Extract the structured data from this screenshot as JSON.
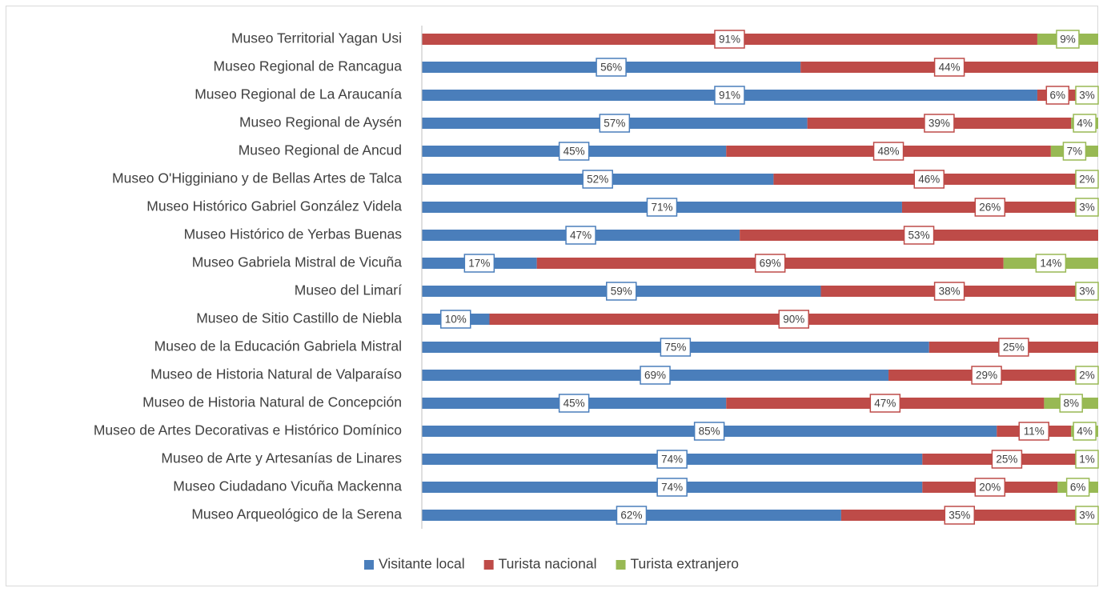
{
  "chart_data": {
    "type": "stacked_barh",
    "categories": [
      "Museo Territorial Yagan Usi",
      "Museo Regional de Rancagua",
      "Museo Regional de La Araucanía",
      "Museo Regional de Aysén",
      "Museo Regional de Ancud",
      "Museo O'Higginiano y de Bellas Artes de Talca",
      "Museo Histórico Gabriel González Videla",
      "Museo Histórico de Yerbas Buenas",
      "Museo Gabriela Mistral de Vicuña",
      "Museo del Limarí",
      "Museo de Sitio Castillo de Niebla",
      "Museo de la Educación Gabriela Mistral",
      "Museo de Historia Natural de Valparaíso",
      "Museo de Historia Natural de Concepción",
      "Museo de Artes Decorativas e Histórico Domínico",
      "Museo de Arte y Artesanías de Linares",
      "Museo Ciudadano Vicuña Mackenna",
      "Museo Arqueológico de la Serena"
    ],
    "series": [
      {
        "name": "Visitante local",
        "color": "#4a7ebb",
        "values": [
          0,
          56,
          91,
          57,
          45,
          52,
          71,
          47,
          17,
          59,
          10,
          75,
          69,
          45,
          85,
          74,
          74,
          62
        ],
        "value_labels": [
          null,
          "56%",
          "91%",
          "57%",
          "45%",
          "52%",
          "71%",
          "47%",
          "17%",
          "59%",
          "10%",
          "75%",
          "69%",
          "45%",
          "85%",
          "74%",
          "74%",
          "62%"
        ]
      },
      {
        "name": "Turista nacional",
        "color": "#be4b48",
        "values": [
          91,
          44,
          6,
          39,
          48,
          46,
          26,
          53,
          69,
          38,
          90,
          25,
          29,
          47,
          11,
          25,
          20,
          35
        ],
        "value_labels": [
          "91%",
          "44%",
          "6%",
          "39%",
          "48%",
          "46%",
          "26%",
          "53%",
          "69%",
          "38%",
          "90%",
          "25%",
          "29%",
          "47%",
          "11%",
          "25%",
          "20%",
          "35%"
        ]
      },
      {
        "name": "Turista extranjero",
        "color": "#98b954",
        "values": [
          9,
          0,
          3,
          4,
          7,
          2,
          3,
          0,
          14,
          3,
          0,
          0,
          2,
          8,
          4,
          1,
          6,
          3
        ],
        "value_labels": [
          "9%",
          null,
          "3%",
          "4%",
          "7%",
          "2%",
          "3%",
          null,
          "14%",
          "3%",
          null,
          null,
          "2%",
          "8%",
          "4%",
          "1%",
          "6%",
          "3%"
        ]
      }
    ],
    "xlim": [
      0,
      100
    ],
    "legend": "bottom"
  }
}
